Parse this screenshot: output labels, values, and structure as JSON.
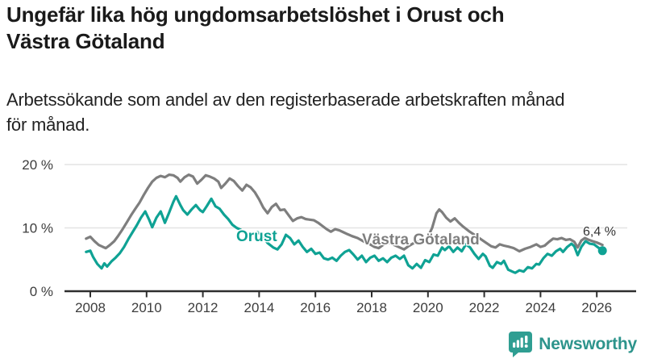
{
  "header": {
    "title": "Ungefär lika hög ungdomsarbetslöshet i Orust och\nVästra Götaland",
    "subtitle": "Arbetssökande som andel av den registerbaserade arbetskraften månad\nför månad."
  },
  "chart_data": {
    "type": "line",
    "title": "Ungefär lika hög ungdomsarbetslöshet i Orust och Västra Götaland",
    "subtitle": "Arbetssökande som andel av den registerbaserade arbetskraften månad för månad.",
    "grid": true,
    "legend_position": "inline-labels",
    "x_axis": {
      "ticks": [
        2008,
        2010,
        2012,
        2014,
        2016,
        2018,
        2020,
        2022,
        2024,
        2026
      ],
      "labels": [
        "2008",
        "2010",
        "2012",
        "2014",
        "2016",
        "2018",
        "2020",
        "2022",
        "2024",
        "2026"
      ],
      "range": [
        2007.6,
        2026.6
      ]
    },
    "y_axis": {
      "ticks": [
        0,
        10,
        20
      ],
      "labels": [
        "0 %",
        "10 %",
        "20 %"
      ],
      "range": [
        0,
        21.3
      ]
    },
    "end_label": {
      "text": "6,4 %",
      "series": "Orust",
      "value": 6.4,
      "x": 2026.2
    },
    "series": [
      {
        "name": "Orust",
        "color": "#0fa294",
        "points": [
          [
            2007.85,
            6.2
          ],
          [
            2008.0,
            6.4
          ],
          [
            2008.1,
            5.4
          ],
          [
            2008.25,
            4.3
          ],
          [
            2008.4,
            3.6
          ],
          [
            2008.5,
            4.4
          ],
          [
            2008.6,
            3.9
          ],
          [
            2008.75,
            4.7
          ],
          [
            2008.9,
            5.3
          ],
          [
            2009.05,
            6.0
          ],
          [
            2009.2,
            7.0
          ],
          [
            2009.35,
            8.2
          ],
          [
            2009.5,
            9.3
          ],
          [
            2009.65,
            10.4
          ],
          [
            2009.8,
            11.6
          ],
          [
            2009.95,
            12.6
          ],
          [
            2010.1,
            11.2
          ],
          [
            2010.2,
            10.1
          ],
          [
            2010.35,
            11.6
          ],
          [
            2010.5,
            12.6
          ],
          [
            2010.65,
            10.8
          ],
          [
            2010.8,
            12.4
          ],
          [
            2010.95,
            14.1
          ],
          [
            2011.05,
            15.0
          ],
          [
            2011.2,
            13.6
          ],
          [
            2011.3,
            12.8
          ],
          [
            2011.45,
            12.1
          ],
          [
            2011.6,
            12.9
          ],
          [
            2011.75,
            13.6
          ],
          [
            2011.9,
            12.8
          ],
          [
            2012.0,
            12.5
          ],
          [
            2012.15,
            13.5
          ],
          [
            2012.3,
            14.6
          ],
          [
            2012.45,
            13.4
          ],
          [
            2012.6,
            13.0
          ],
          [
            2012.75,
            12.1
          ],
          [
            2012.9,
            11.4
          ],
          [
            2013.05,
            10.5
          ],
          [
            2013.2,
            10.0
          ],
          [
            2013.35,
            9.7
          ],
          [
            2013.5,
            9.1
          ],
          [
            2013.65,
            8.7
          ],
          [
            2013.8,
            9.0
          ],
          [
            2013.95,
            9.3
          ],
          [
            2014.1,
            8.9
          ],
          [
            2014.3,
            7.6
          ],
          [
            2014.5,
            6.9
          ],
          [
            2014.65,
            6.6
          ],
          [
            2014.8,
            7.4
          ],
          [
            2014.95,
            8.9
          ],
          [
            2015.1,
            8.4
          ],
          [
            2015.25,
            7.4
          ],
          [
            2015.4,
            8.0
          ],
          [
            2015.55,
            7.0
          ],
          [
            2015.7,
            6.2
          ],
          [
            2015.85,
            6.7
          ],
          [
            2016.0,
            5.9
          ],
          [
            2016.15,
            6.1
          ],
          [
            2016.3,
            5.2
          ],
          [
            2016.45,
            5.0
          ],
          [
            2016.6,
            5.3
          ],
          [
            2016.75,
            4.8
          ],
          [
            2016.9,
            5.6
          ],
          [
            2017.05,
            6.2
          ],
          [
            2017.2,
            6.5
          ],
          [
            2017.35,
            5.8
          ],
          [
            2017.5,
            5.0
          ],
          [
            2017.65,
            5.6
          ],
          [
            2017.8,
            4.6
          ],
          [
            2017.95,
            5.3
          ],
          [
            2018.1,
            5.6
          ],
          [
            2018.25,
            4.8
          ],
          [
            2018.4,
            5.2
          ],
          [
            2018.55,
            4.6
          ],
          [
            2018.7,
            5.3
          ],
          [
            2018.85,
            5.6
          ],
          [
            2019.0,
            5.1
          ],
          [
            2019.15,
            5.6
          ],
          [
            2019.3,
            4.1
          ],
          [
            2019.45,
            3.6
          ],
          [
            2019.6,
            4.3
          ],
          [
            2019.75,
            3.7
          ],
          [
            2019.9,
            4.9
          ],
          [
            2020.05,
            4.6
          ],
          [
            2020.2,
            5.8
          ],
          [
            2020.35,
            5.6
          ],
          [
            2020.5,
            6.9
          ],
          [
            2020.6,
            6.5
          ],
          [
            2020.75,
            7.1
          ],
          [
            2020.9,
            6.2
          ],
          [
            2021.05,
            6.9
          ],
          [
            2021.2,
            6.3
          ],
          [
            2021.35,
            7.4
          ],
          [
            2021.5,
            6.9
          ],
          [
            2021.65,
            5.9
          ],
          [
            2021.8,
            5.1
          ],
          [
            2021.95,
            5.9
          ],
          [
            2022.05,
            5.5
          ],
          [
            2022.2,
            4.0
          ],
          [
            2022.3,
            3.7
          ],
          [
            2022.45,
            4.6
          ],
          [
            2022.6,
            4.3
          ],
          [
            2022.7,
            4.8
          ],
          [
            2022.85,
            3.4
          ],
          [
            2023.0,
            3.1
          ],
          [
            2023.1,
            2.9
          ],
          [
            2023.25,
            3.3
          ],
          [
            2023.4,
            3.1
          ],
          [
            2023.55,
            3.8
          ],
          [
            2023.7,
            3.6
          ],
          [
            2023.85,
            4.3
          ],
          [
            2023.95,
            4.2
          ],
          [
            2024.1,
            5.2
          ],
          [
            2024.25,
            5.9
          ],
          [
            2024.4,
            5.6
          ],
          [
            2024.55,
            6.3
          ],
          [
            2024.7,
            6.7
          ],
          [
            2024.8,
            6.2
          ],
          [
            2024.95,
            7.0
          ],
          [
            2025.1,
            7.5
          ],
          [
            2025.2,
            7.1
          ],
          [
            2025.32,
            5.7
          ],
          [
            2025.45,
            7.0
          ],
          [
            2025.6,
            7.9
          ],
          [
            2025.75,
            7.5
          ],
          [
            2025.9,
            7.4
          ],
          [
            2026.05,
            6.9
          ],
          [
            2026.2,
            6.4
          ]
        ]
      },
      {
        "name": "Västra Götaland",
        "color": "#7e7e7e",
        "points": [
          [
            2007.85,
            8.3
          ],
          [
            2008.0,
            8.6
          ],
          [
            2008.15,
            7.9
          ],
          [
            2008.3,
            7.3
          ],
          [
            2008.45,
            7.0
          ],
          [
            2008.55,
            6.8
          ],
          [
            2008.7,
            7.3
          ],
          [
            2008.85,
            7.9
          ],
          [
            2009.0,
            8.8
          ],
          [
            2009.15,
            9.8
          ],
          [
            2009.3,
            10.9
          ],
          [
            2009.45,
            12.0
          ],
          [
            2009.6,
            13.0
          ],
          [
            2009.75,
            14.0
          ],
          [
            2009.9,
            15.2
          ],
          [
            2010.05,
            16.3
          ],
          [
            2010.2,
            17.3
          ],
          [
            2010.35,
            17.9
          ],
          [
            2010.5,
            18.2
          ],
          [
            2010.65,
            18.0
          ],
          [
            2010.8,
            18.4
          ],
          [
            2010.95,
            18.3
          ],
          [
            2011.1,
            17.9
          ],
          [
            2011.2,
            17.3
          ],
          [
            2011.35,
            18.0
          ],
          [
            2011.5,
            18.4
          ],
          [
            2011.65,
            18.1
          ],
          [
            2011.8,
            17.0
          ],
          [
            2011.95,
            17.6
          ],
          [
            2012.1,
            18.3
          ],
          [
            2012.25,
            18.1
          ],
          [
            2012.4,
            17.8
          ],
          [
            2012.55,
            17.3
          ],
          [
            2012.65,
            16.3
          ],
          [
            2012.8,
            17.0
          ],
          [
            2012.95,
            17.8
          ],
          [
            2013.1,
            17.4
          ],
          [
            2013.25,
            16.6
          ],
          [
            2013.4,
            15.9
          ],
          [
            2013.55,
            16.8
          ],
          [
            2013.7,
            16.4
          ],
          [
            2013.85,
            15.6
          ],
          [
            2014.0,
            14.5
          ],
          [
            2014.15,
            13.2
          ],
          [
            2014.3,
            12.3
          ],
          [
            2014.45,
            13.3
          ],
          [
            2014.6,
            13.8
          ],
          [
            2014.75,
            12.8
          ],
          [
            2014.9,
            12.9
          ],
          [
            2015.05,
            12.0
          ],
          [
            2015.2,
            11.1
          ],
          [
            2015.35,
            11.5
          ],
          [
            2015.5,
            11.7
          ],
          [
            2015.65,
            11.4
          ],
          [
            2015.8,
            11.3
          ],
          [
            2015.95,
            11.2
          ],
          [
            2016.1,
            10.8
          ],
          [
            2016.25,
            10.3
          ],
          [
            2016.4,
            9.8
          ],
          [
            2016.55,
            9.4
          ],
          [
            2016.7,
            9.8
          ],
          [
            2016.85,
            9.6
          ],
          [
            2017.0,
            9.3
          ],
          [
            2017.15,
            9.0
          ],
          [
            2017.3,
            8.7
          ],
          [
            2017.5,
            8.4
          ],
          [
            2017.7,
            7.9
          ],
          [
            2017.9,
            7.5
          ],
          [
            2018.1,
            7.0
          ],
          [
            2018.25,
            6.8
          ],
          [
            2018.4,
            7.3
          ],
          [
            2018.6,
            7.7
          ],
          [
            2018.8,
            7.3
          ],
          [
            2019.0,
            6.9
          ],
          [
            2019.15,
            6.6
          ],
          [
            2019.3,
            7.1
          ],
          [
            2019.5,
            7.6
          ],
          [
            2019.7,
            7.9
          ],
          [
            2019.85,
            8.1
          ],
          [
            2020.0,
            8.6
          ],
          [
            2020.15,
            10.0
          ],
          [
            2020.3,
            12.3
          ],
          [
            2020.4,
            12.9
          ],
          [
            2020.5,
            12.5
          ],
          [
            2020.65,
            11.6
          ],
          [
            2020.8,
            11.0
          ],
          [
            2020.95,
            11.5
          ],
          [
            2021.1,
            10.8
          ],
          [
            2021.25,
            10.2
          ],
          [
            2021.45,
            9.5
          ],
          [
            2021.65,
            8.9
          ],
          [
            2021.85,
            8.3
          ],
          [
            2022.05,
            7.7
          ],
          [
            2022.25,
            7.1
          ],
          [
            2022.4,
            6.9
          ],
          [
            2022.55,
            7.4
          ],
          [
            2022.7,
            7.2
          ],
          [
            2022.9,
            7.0
          ],
          [
            2023.05,
            6.8
          ],
          [
            2023.25,
            6.3
          ],
          [
            2023.45,
            6.7
          ],
          [
            2023.65,
            7.0
          ],
          [
            2023.85,
            7.4
          ],
          [
            2024.0,
            7.0
          ],
          [
            2024.15,
            7.2
          ],
          [
            2024.3,
            7.8
          ],
          [
            2024.45,
            8.3
          ],
          [
            2024.6,
            8.2
          ],
          [
            2024.75,
            8.4
          ],
          [
            2024.9,
            8.1
          ],
          [
            2025.05,
            8.2
          ],
          [
            2025.2,
            7.8
          ],
          [
            2025.32,
            6.9
          ],
          [
            2025.45,
            8.0
          ],
          [
            2025.58,
            8.4
          ],
          [
            2025.72,
            8.1
          ],
          [
            2025.85,
            7.9
          ],
          [
            2026.0,
            7.7
          ],
          [
            2026.1,
            7.5
          ],
          [
            2026.2,
            7.3
          ]
        ]
      }
    ],
    "colors": {
      "orust": "#0fa294",
      "vastra_gotaland": "#7e7e7e",
      "axis": "#2e2e2e",
      "grid": "#e3e3e3"
    }
  },
  "footer": {
    "brand": "Newsworthy",
    "brand_color": "#2d948c"
  }
}
